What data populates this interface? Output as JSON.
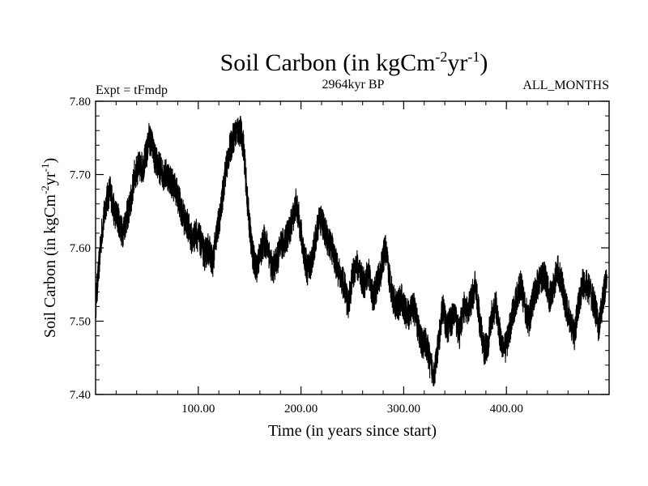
{
  "chart_data": {
    "type": "line",
    "title": "Soil Carbon (in kgCm",
    "title_sup1": "-2",
    "title_mid": "yr",
    "title_sup2": "-1",
    "title_end": ")",
    "subtitle_left": "Expt = tFmdp",
    "subtitle_center": "2964kyr BP",
    "subtitle_right": "ALL_MONTHS",
    "xlabel": "Time (in years since start)",
    "ylabel": "Soil Carbon (in kgCm",
    "ylabel_sup1": "-2",
    "ylabel_mid": "yr",
    "ylabel_sup2": "-1",
    "ylabel_end": ")",
    "xlim": [
      0,
      500
    ],
    "ylim": [
      7.4,
      7.8
    ],
    "x_ticks": [
      100,
      200,
      300,
      400
    ],
    "x_tick_labels": [
      "100.00",
      "200.00",
      "300.00",
      "400.00"
    ],
    "y_ticks": [
      7.4,
      7.5,
      7.6,
      7.7,
      7.8
    ],
    "y_tick_labels": [
      "7.40",
      "7.50",
      "7.60",
      "7.70",
      "7.80"
    ],
    "x_minor_step": 20,
    "y_minor_step": 0.02,
    "grid": false,
    "series": [
      {
        "name": "Soil Carbon",
        "color": "#000000",
        "x": [
          0,
          3,
          6,
          10,
          14,
          18,
          22,
          26,
          30,
          34,
          38,
          42,
          46,
          50,
          52,
          55,
          58,
          62,
          66,
          70,
          74,
          78,
          82,
          86,
          90,
          94,
          98,
          102,
          106,
          110,
          114,
          118,
          122,
          126,
          130,
          134,
          138,
          141,
          144,
          148,
          152,
          156,
          160,
          164,
          168,
          172,
          176,
          180,
          184,
          188,
          192,
          195,
          198,
          202,
          206,
          210,
          214,
          218,
          222,
          226,
          230,
          234,
          238,
          242,
          246,
          250,
          254,
          258,
          262,
          266,
          270,
          274,
          278,
          282,
          286,
          290,
          294,
          298,
          302,
          306,
          310,
          314,
          318,
          322,
          326,
          330,
          334,
          338,
          342,
          346,
          350,
          354,
          358,
          362,
          366,
          370,
          374,
          378,
          382,
          386,
          390,
          394,
          398,
          402,
          406,
          410,
          414,
          418,
          422,
          426,
          430,
          434,
          438,
          442,
          446,
          450,
          454,
          458,
          462,
          466,
          470,
          474,
          478,
          482,
          486,
          490,
          494,
          498
        ],
        "mean": [
          7.52,
          7.57,
          7.62,
          7.66,
          7.68,
          7.65,
          7.64,
          7.62,
          7.64,
          7.66,
          7.7,
          7.71,
          7.71,
          7.73,
          7.75,
          7.74,
          7.72,
          7.71,
          7.7,
          7.7,
          7.69,
          7.68,
          7.66,
          7.64,
          7.63,
          7.61,
          7.62,
          7.61,
          7.59,
          7.6,
          7.58,
          7.62,
          7.65,
          7.7,
          7.73,
          7.75,
          7.76,
          7.76,
          7.74,
          7.66,
          7.6,
          7.57,
          7.59,
          7.61,
          7.6,
          7.57,
          7.58,
          7.6,
          7.61,
          7.62,
          7.64,
          7.66,
          7.64,
          7.6,
          7.57,
          7.58,
          7.61,
          7.64,
          7.63,
          7.61,
          7.6,
          7.58,
          7.56,
          7.55,
          7.52,
          7.56,
          7.58,
          7.56,
          7.55,
          7.57,
          7.53,
          7.55,
          7.57,
          7.6,
          7.56,
          7.53,
          7.52,
          7.53,
          7.51,
          7.51,
          7.52,
          7.49,
          7.47,
          7.47,
          7.44,
          7.43,
          7.47,
          7.52,
          7.49,
          7.5,
          7.51,
          7.48,
          7.52,
          7.51,
          7.53,
          7.55,
          7.5,
          7.46,
          7.47,
          7.51,
          7.52,
          7.48,
          7.46,
          7.48,
          7.51,
          7.53,
          7.55,
          7.52,
          7.5,
          7.53,
          7.55,
          7.56,
          7.56,
          7.53,
          7.55,
          7.57,
          7.55,
          7.52,
          7.5,
          7.48,
          7.52,
          7.55,
          7.55,
          7.54,
          7.52,
          7.49,
          7.53,
          7.56
        ],
        "band": 0.022
      }
    ]
  }
}
